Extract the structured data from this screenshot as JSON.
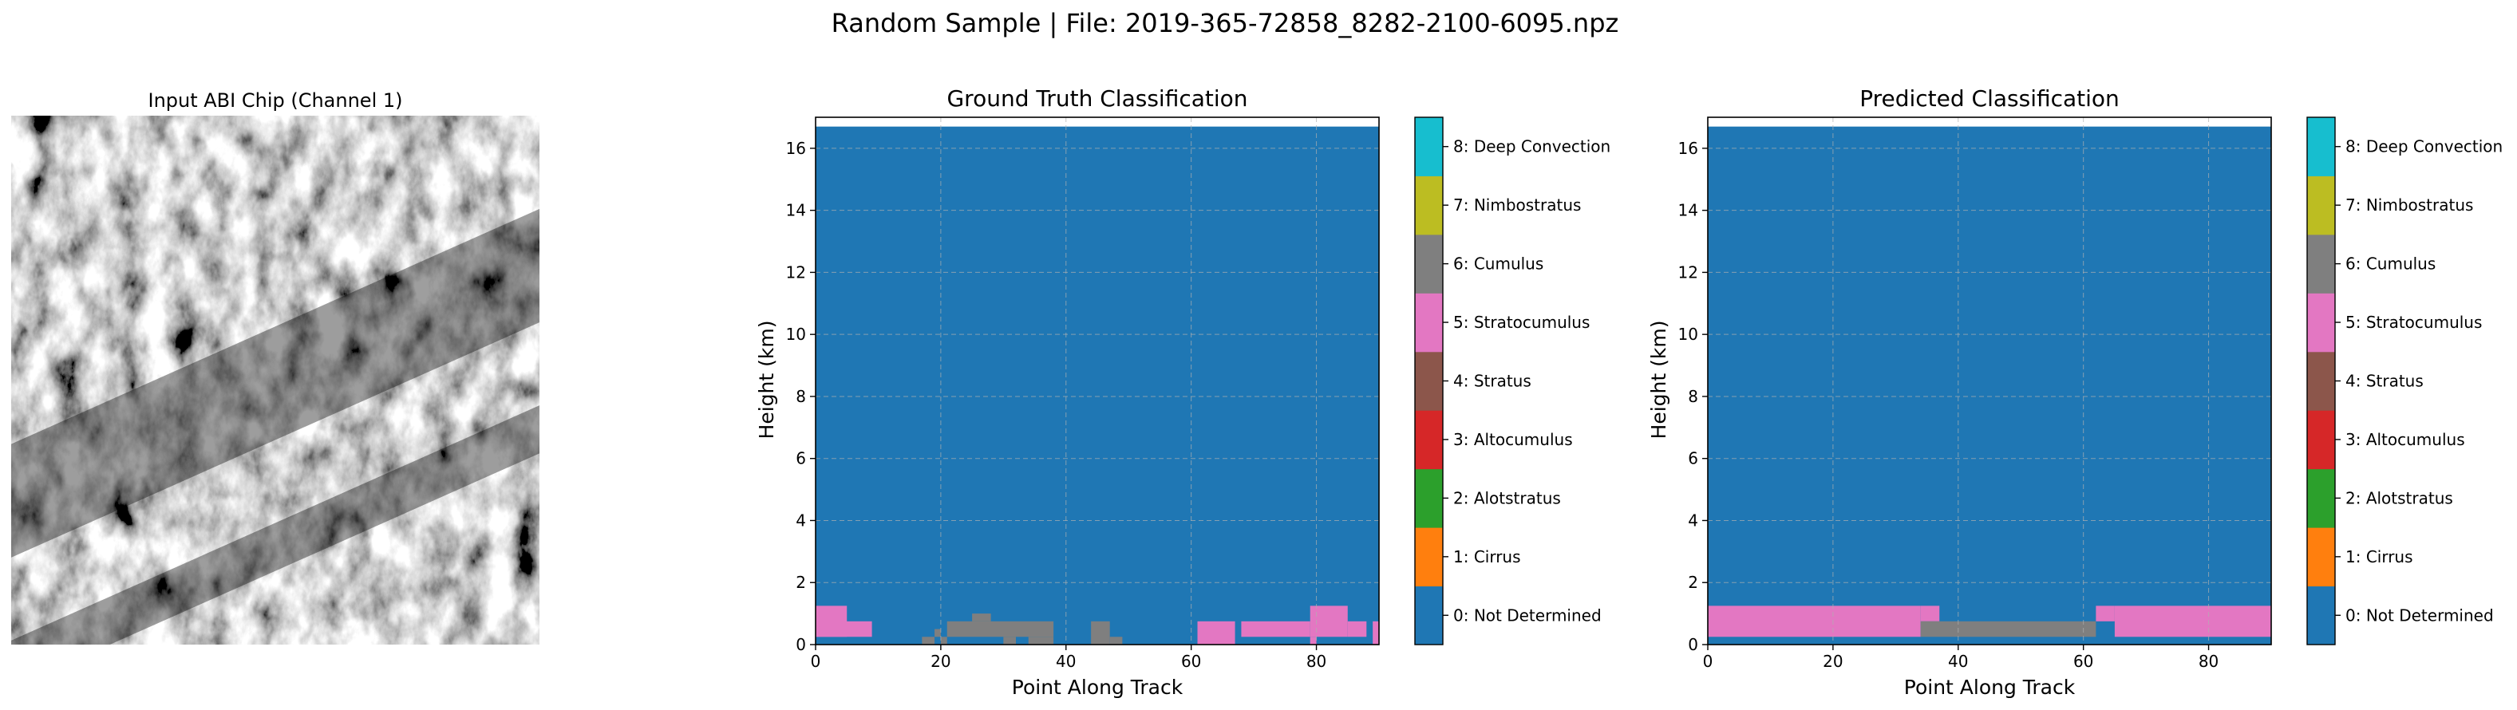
{
  "figure": {
    "suptitle": "Random Sample | File: 2019-365-72858_8282-2100-6095.npz"
  },
  "panels": {
    "input": {
      "title": "Input ABI Chip (Channel 1)"
    },
    "truth": {
      "title": "Ground Truth Classification",
      "xlabel": "Point Along Track",
      "ylabel": "Height (km)"
    },
    "pred": {
      "title": "Predicted Classification",
      "xlabel": "Point Along Track",
      "ylabel": "Height (km)"
    }
  },
  "classes": [
    {
      "id": 0,
      "label": "0: Not Determined",
      "color": "#1f77b4"
    },
    {
      "id": 1,
      "label": "1: Cirrus",
      "color": "#ff7f0e"
    },
    {
      "id": 2,
      "label": "2: Alotstratus",
      "color": "#2ca02c"
    },
    {
      "id": 3,
      "label": "3: Altocumulus",
      "color": "#d62728"
    },
    {
      "id": 4,
      "label": "4: Stratus",
      "color": "#8c564b"
    },
    {
      "id": 5,
      "label": "5: Stratocumulus",
      "color": "#e377c2"
    },
    {
      "id": 6,
      "label": "6: Cumulus",
      "color": "#7f7f7f"
    },
    {
      "id": 7,
      "label": "7: Nimbostratus",
      "color": "#bcbd22"
    },
    {
      "id": 8,
      "label": "8: Deep Convection",
      "color": "#17becf"
    }
  ],
  "chart_data": [
    {
      "type": "heatmap",
      "title": "Ground Truth Classification",
      "xlabel": "Point Along Track",
      "ylabel": "Height (km)",
      "xlim": [
        0,
        90
      ],
      "ylim": [
        0,
        17
      ],
      "xticks": [
        0,
        20,
        40,
        60,
        80
      ],
      "yticks": [
        0,
        2,
        4,
        6,
        8,
        10,
        12,
        14,
        16
      ],
      "grid": true,
      "background_class": 0,
      "cloud_top_km": 16.7,
      "regions": [
        {
          "class": 5,
          "x": [
            0,
            5
          ],
          "y": [
            0.25,
            1.25
          ]
        },
        {
          "class": 5,
          "x": [
            0,
            9
          ],
          "y": [
            0.25,
            0.75
          ]
        },
        {
          "class": 6,
          "x": [
            17,
            19
          ],
          "y": [
            0,
            0.25
          ]
        },
        {
          "class": 6,
          "x": [
            19,
            20
          ],
          "y": [
            0.25,
            0.5
          ]
        },
        {
          "class": 6,
          "x": [
            20,
            21
          ],
          "y": [
            0,
            0.25
          ]
        },
        {
          "class": 6,
          "x": [
            21,
            38
          ],
          "y": [
            0.25,
            0.75
          ]
        },
        {
          "class": 6,
          "x": [
            25,
            28
          ],
          "y": [
            0.75,
            1.0
          ]
        },
        {
          "class": 6,
          "x": [
            30,
            32
          ],
          "y": [
            0,
            0.25
          ]
        },
        {
          "class": 6,
          "x": [
            34,
            38
          ],
          "y": [
            0,
            0.25
          ]
        },
        {
          "class": 6,
          "x": [
            44,
            47
          ],
          "y": [
            0,
            0.75
          ]
        },
        {
          "class": 6,
          "x": [
            47,
            49
          ],
          "y": [
            0,
            0.25
          ]
        },
        {
          "class": 5,
          "x": [
            61,
            67
          ],
          "y": [
            0,
            0.75
          ]
        },
        {
          "class": 5,
          "x": [
            68,
            79
          ],
          "y": [
            0.25,
            0.75
          ]
        },
        {
          "class": 5,
          "x": [
            79,
            85
          ],
          "y": [
            0.25,
            1.25
          ]
        },
        {
          "class": 5,
          "x": [
            79,
            80
          ],
          "y": [
            0,
            0.25
          ]
        },
        {
          "class": 5,
          "x": [
            85,
            88
          ],
          "y": [
            0.25,
            0.75
          ]
        },
        {
          "class": 5,
          "x": [
            89,
            90
          ],
          "y": [
            0,
            0.75
          ]
        }
      ]
    },
    {
      "type": "heatmap",
      "title": "Predicted Classification",
      "xlabel": "Point Along Track",
      "ylabel": "Height (km)",
      "xlim": [
        0,
        90
      ],
      "ylim": [
        0,
        17
      ],
      "xticks": [
        0,
        20,
        40,
        60,
        80
      ],
      "yticks": [
        0,
        2,
        4,
        6,
        8,
        10,
        12,
        14,
        16
      ],
      "grid": true,
      "background_class": 0,
      "cloud_top_km": 16.7,
      "regions": [
        {
          "class": 5,
          "x": [
            0,
            34
          ],
          "y": [
            0.25,
            1.25
          ]
        },
        {
          "class": 5,
          "x": [
            34,
            37
          ],
          "y": [
            0.75,
            1.25
          ]
        },
        {
          "class": 6,
          "x": [
            34,
            62
          ],
          "y": [
            0.25,
            0.75
          ]
        },
        {
          "class": 5,
          "x": [
            62,
            65
          ],
          "y": [
            0.75,
            1.25
          ]
        },
        {
          "class": 5,
          "x": [
            65,
            90
          ],
          "y": [
            0.25,
            1.25
          ]
        }
      ]
    }
  ]
}
